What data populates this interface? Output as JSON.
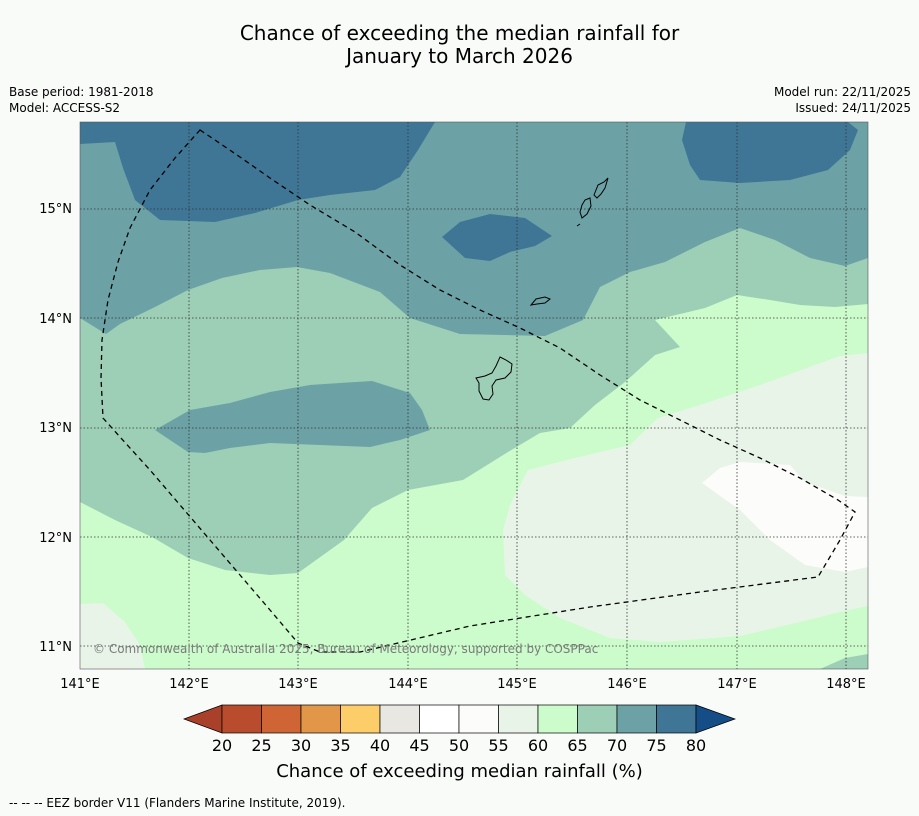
{
  "header": {
    "title_line1": "Chance of exceeding the median rainfall for",
    "title_line2": "January to March 2026",
    "base_period": "Base period: 1981-2018",
    "model": "Model: ACCESS-S2",
    "model_run": "Model run: 22/11/2025",
    "issued": "Issued: 24/11/2025"
  },
  "map": {
    "lat_labels": [
      "15°N",
      "14°N",
      "13°N",
      "12°N",
      "11°N"
    ],
    "lon_labels": [
      "141°E",
      "142°E",
      "143°E",
      "144°E",
      "145°E",
      "146°E",
      "147°E",
      "148°E"
    ],
    "copyright": "© Commonwealth of Australia 2025, Bureau of Meteorology, supported by COSPPac",
    "legend_bins": [
      {
        "range": "<20",
        "color": "#a8402a"
      },
      {
        "range": "20-25",
        "color": "#b84c2c"
      },
      {
        "range": "25-30",
        "color": "#cf6535"
      },
      {
        "range": "30-35",
        "color": "#e29748"
      },
      {
        "range": "35-40",
        "color": "#fdcd6a"
      },
      {
        "range": "40-45",
        "color": "#e8e7e2"
      },
      {
        "range": "45-50",
        "color": "#ffffff"
      },
      {
        "range": "50-55",
        "color": "#fcfdfa"
      },
      {
        "range": "55-60",
        "color": "#e8f4e8"
      },
      {
        "range": "60-65",
        "color": "#ccfccb"
      },
      {
        "range": "65-70",
        "color": "#9ccfb6"
      },
      {
        "range": "70-75",
        "color": "#6ca2a6"
      },
      {
        "range": "75-80",
        "color": "#3f7695"
      },
      {
        "range": ">80",
        "color": "#154d86"
      }
    ],
    "colorbar_ticks": [
      "20",
      "25",
      "30",
      "35",
      "40",
      "45",
      "50",
      "55",
      "60",
      "65",
      "70",
      "75",
      "80"
    ]
  },
  "colorbar_label": "Chance of exceeding median rainfall (%)",
  "footer": "--  --  -- EEZ border V11 (Flanders Marine Institute, 2019)."
}
